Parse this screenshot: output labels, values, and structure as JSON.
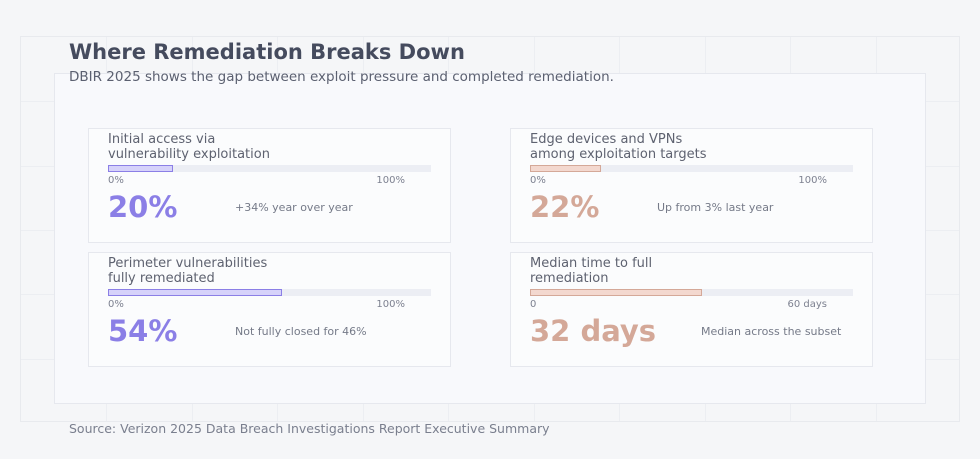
{
  "title": "Where Remediation Breaks Down",
  "subtitle": "DBIR 2025 shows the gap between exploit pressure and completed remediation.",
  "source": "Source: Verizon 2025 Data Breach Investigations Report Executive Summary",
  "colors": {
    "purple": "#8b7fe6",
    "purple_fill": "#d6d2fa",
    "salmon": "#d4a898",
    "salmon_fill": "#f3d8cf"
  },
  "chart_data": {
    "type": "bar",
    "cards": [
      {
        "label": "Initial access via\nvulnerability exploitation",
        "value": 20,
        "max": 100,
        "min_label": "0%",
        "max_label": "100%",
        "display": "20%",
        "note": "+34% year over year",
        "color": "purple"
      },
      {
        "label": "Edge devices and VPNs\namong exploitation targets",
        "value": 22,
        "max": 100,
        "min_label": "0%",
        "max_label": "100%",
        "display": "22%",
        "note": "Up from 3% last year",
        "color": "salmon"
      },
      {
        "label": "Perimeter vulnerabilities\nfully remediated",
        "value": 54,
        "max": 100,
        "min_label": "0%",
        "max_label": "100%",
        "display": "54%",
        "note": "Not fully closed for 46%",
        "color": "purple"
      },
      {
        "label": "Median time to full\nremediation",
        "value": 32,
        "max": 60,
        "min_label": "0",
        "max_label": "60 days",
        "display": "32 days",
        "note": "Median across the subset",
        "color": "salmon"
      }
    ]
  }
}
